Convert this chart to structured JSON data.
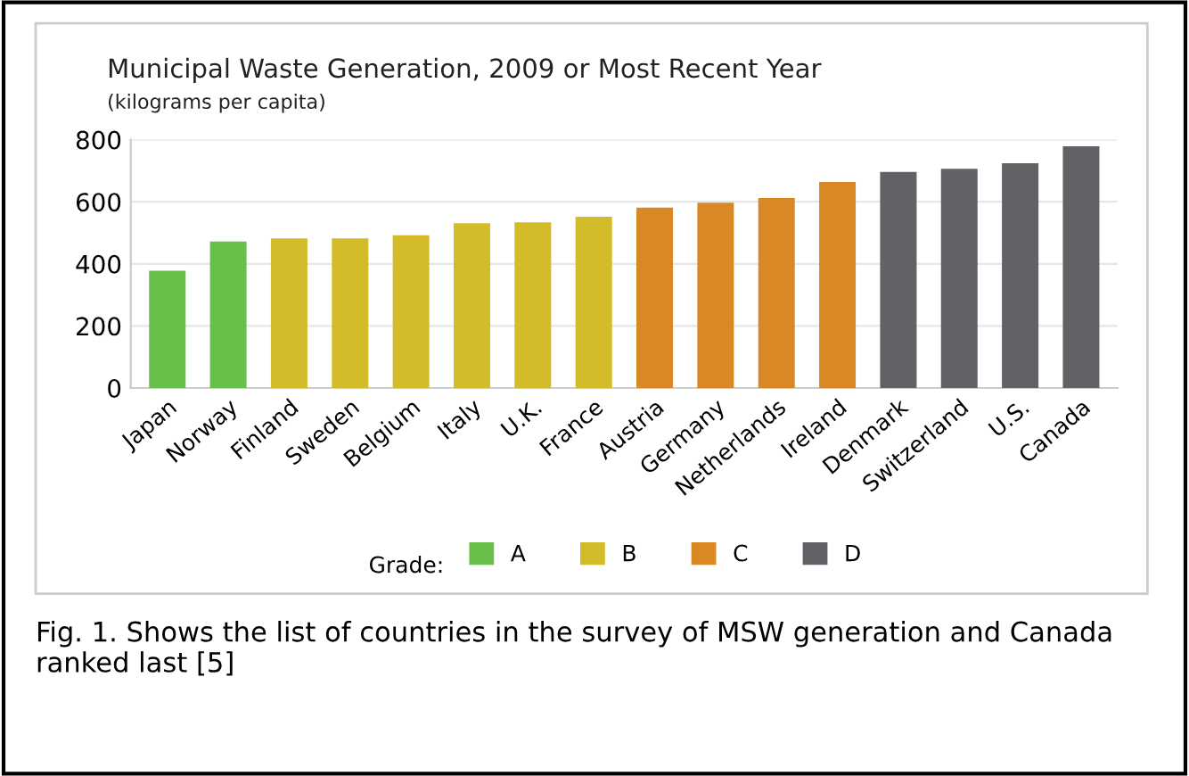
{
  "chart_data": {
    "type": "bar",
    "title": "Municipal Waste Generation, 2009 or Most Recent Year",
    "subtitle": "(kilograms per capita)",
    "categories": [
      "Japan",
      "Norway",
      "Finland",
      "Sweden",
      "Belgium",
      "Italy",
      "U.K.",
      "France",
      "Austria",
      "Germany",
      "Netherlands",
      "Ireland",
      "Denmark",
      "Switzerland",
      "U.S.",
      "Canada"
    ],
    "series": [
      {
        "name": "A",
        "color": "#6abf4b",
        "values": [
          378,
          472,
          null,
          null,
          null,
          null,
          null,
          null,
          null,
          null,
          null,
          null,
          null,
          null,
          null,
          null
        ]
      },
      {
        "name": "B",
        "color": "#d4bb2a",
        "values": [
          null,
          null,
          482,
          482,
          492,
          531,
          534,
          552,
          null,
          null,
          null,
          null,
          null,
          null,
          null,
          null
        ]
      },
      {
        "name": "C",
        "color": "#d98826",
        "values": [
          null,
          null,
          null,
          null,
          null,
          null,
          null,
          null,
          581,
          597,
          612,
          664,
          null,
          null,
          null,
          null
        ]
      },
      {
        "name": "D",
        "color": "#616266",
        "values": [
          null,
          null,
          null,
          null,
          null,
          null,
          null,
          null,
          null,
          null,
          null,
          null,
          696,
          706,
          724,
          779
        ]
      }
    ],
    "legend_title": "Grade:",
    "legend": "bottom",
    "ylim": [
      0,
      800
    ],
    "yticks": [
      0,
      200,
      400,
      600,
      800
    ],
    "grid": "y",
    "annotations": [
      "Fig. 1. Shows the list of countries in the survey of MSW generation and Canada ranked last [5]"
    ]
  }
}
